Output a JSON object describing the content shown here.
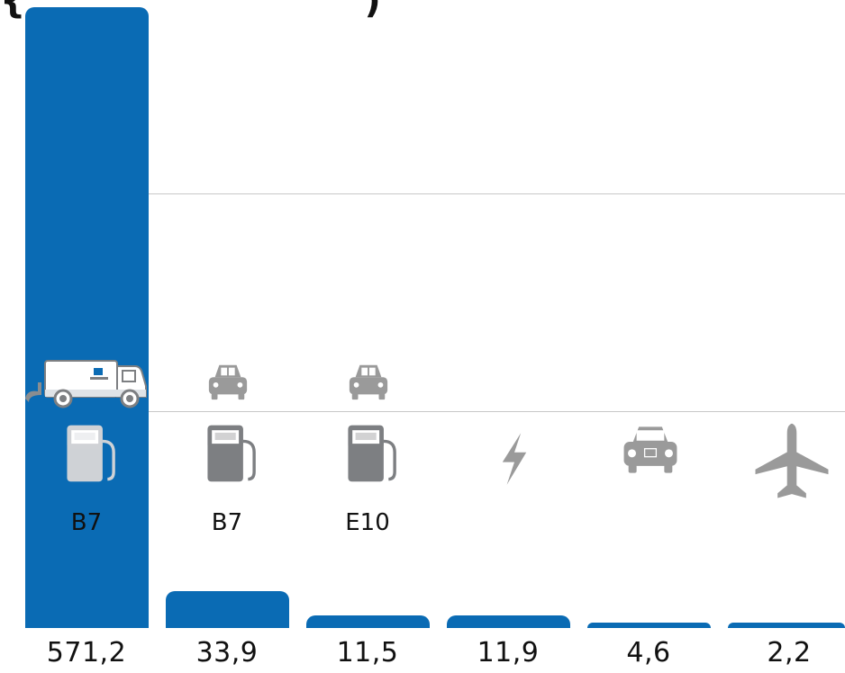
{
  "colors": {
    "bar": "#0a6bb4",
    "icon_gray": "#9a9a9a",
    "icon_dark": "#7d7f82",
    "icon_on_bar": "#cfd2d6",
    "grid": "#c8c8c8"
  },
  "chart_data": {
    "type": "bar",
    "categories": [
      "B7",
      "B7",
      "E10",
      "",
      "",
      ""
    ],
    "values": [
      571.2,
      33.9,
      11.5,
      11.9,
      4.6,
      2.2
    ],
    "value_labels": [
      "571,2",
      "33,9",
      "11,5",
      "11,9",
      "4,6",
      "2,2"
    ],
    "icons": [
      [
        "truck-icon",
        "fuel-pump-icon"
      ],
      [
        "car-icon",
        "fuel-pump-icon"
      ],
      [
        "car-icon",
        "fuel-pump-icon"
      ],
      [
        "lightning-icon"
      ],
      [
        "company-car-icon"
      ],
      [
        "airplane-icon"
      ]
    ],
    "grid": true
  }
}
